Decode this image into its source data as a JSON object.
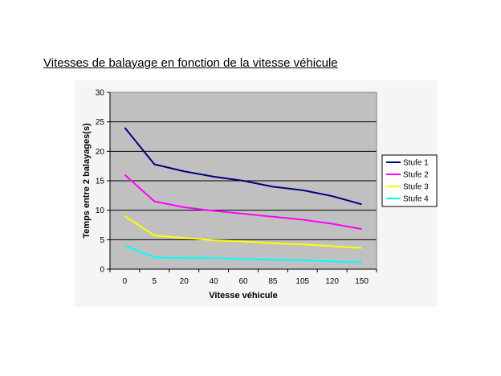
{
  "page": {
    "title": "Vitesses de balayage en fonction de la vitesse véhicule"
  },
  "chart_data": {
    "type": "line",
    "title": "Vitesses de balayage en fonction de la vitesse véhicule",
    "xlabel": "Vitesse véhicule",
    "ylabel": "Temps entre 2 balayages(s)",
    "categories": [
      "0",
      "5",
      "20",
      "40",
      "60",
      "85",
      "105",
      "120",
      "150"
    ],
    "ylim": [
      0,
      30
    ],
    "yticks": [
      "0",
      "5",
      "10",
      "15",
      "20",
      "25",
      "30"
    ],
    "grid": "horizontal",
    "legend_position": "right",
    "plot_background": "#c0c0c0",
    "series": [
      {
        "name": "Stufe 1",
        "color": "#000080",
        "values": [
          24,
          17.8,
          16.6,
          15.7,
          15,
          14,
          13.4,
          12.4,
          11
        ]
      },
      {
        "name": "Stufe 2",
        "color": "#ff00ff",
        "values": [
          16,
          11.5,
          10.5,
          9.9,
          9.4,
          8.9,
          8.4,
          7.7,
          6.8
        ]
      },
      {
        "name": "Stufe 3",
        "color": "#ffff00",
        "values": [
          9,
          5.7,
          5.3,
          4.9,
          4.7,
          4.4,
          4.2,
          3.9,
          3.6
        ]
      },
      {
        "name": "Stufe 4",
        "color": "#00ffff",
        "values": [
          4,
          2,
          1.9,
          1.9,
          1.7,
          1.6,
          1.5,
          1.3,
          1.2
        ]
      }
    ]
  }
}
